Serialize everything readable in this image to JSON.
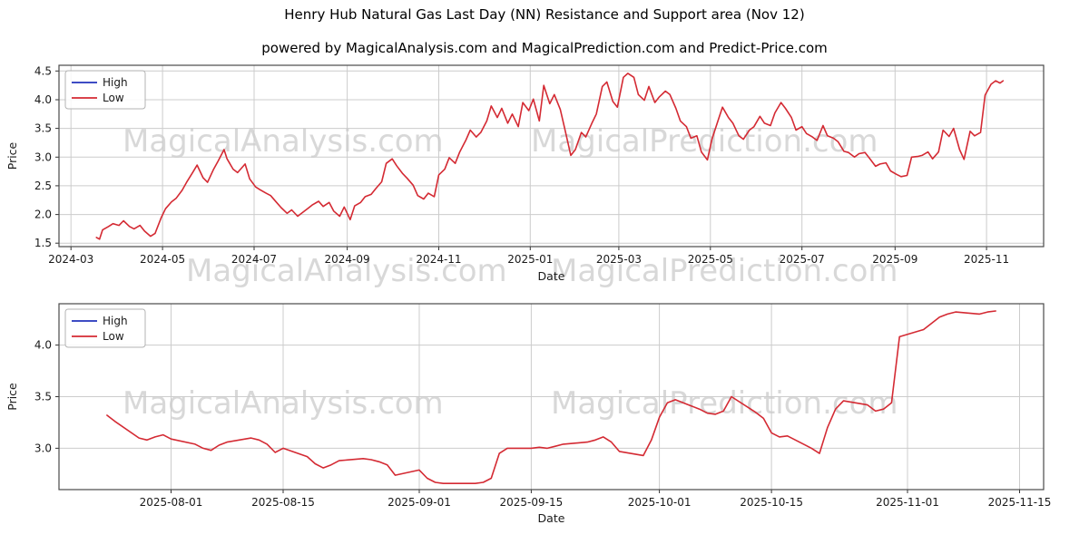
{
  "figure": {
    "title": "Henry Hub Natural Gas Last Day  (NN) Resistance and Support area (Nov 12)",
    "subtitle": "powered by MagicalAnalysis.com and MagicalPrediction.com and Predict-Price.com"
  },
  "watermarks": [
    {
      "text": "MagicalAnalysis.com"
    },
    {
      "text": "MagicalPrediction.com"
    },
    {
      "text": "MagicalAnalysis.com"
    },
    {
      "text": "MagicalPrediction.com"
    },
    {
      "text": "MagicalAnalysis.com"
    },
    {
      "text": "MagicalPrediction.com"
    }
  ],
  "chart_data": [
    {
      "type": "line",
      "title": "",
      "xlabel": "Date",
      "ylabel": "Price",
      "grid": true,
      "x_domain": [
        "2024-02-22",
        "2025-12-09"
      ],
      "x_ticks": [
        {
          "date": "2024-03-01",
          "label": "2024-03"
        },
        {
          "date": "2024-05-01",
          "label": "2024-05"
        },
        {
          "date": "2024-07-01",
          "label": "2024-07"
        },
        {
          "date": "2024-09-01",
          "label": "2024-09"
        },
        {
          "date": "2024-11-01",
          "label": "2024-11"
        },
        {
          "date": "2025-01-01",
          "label": "2025-01"
        },
        {
          "date": "2025-03-01",
          "label": "2025-03"
        },
        {
          "date": "2025-05-01",
          "label": "2025-05"
        },
        {
          "date": "2025-07-01",
          "label": "2025-07"
        },
        {
          "date": "2025-09-01",
          "label": "2025-09"
        },
        {
          "date": "2025-11-01",
          "label": "2025-11"
        }
      ],
      "ylim": [
        1.44,
        4.6
      ],
      "y_ticks": [
        1.5,
        2.0,
        2.5,
        3.0,
        3.5,
        4.0,
        4.5
      ],
      "legend": {
        "position": "upper left",
        "entries": [
          {
            "label": "High",
            "color": "#2233bb"
          },
          {
            "label": "Low",
            "color": "#d42a33"
          }
        ]
      },
      "series": [
        {
          "name": "Low",
          "color": "#d42a33",
          "x": [
            "2024-03-18",
            "2024-03-20",
            "2024-03-22",
            "2024-03-26",
            "2024-03-29",
            "2024-04-02",
            "2024-04-05",
            "2024-04-09",
            "2024-04-12",
            "2024-04-16",
            "2024-04-19",
            "2024-04-23",
            "2024-04-26",
            "2024-04-30",
            "2024-05-03",
            "2024-05-07",
            "2024-05-10",
            "2024-05-14",
            "2024-05-17",
            "2024-05-21",
            "2024-05-24",
            "2024-05-28",
            "2024-05-31",
            "2024-06-04",
            "2024-06-07",
            "2024-06-11",
            "2024-06-13",
            "2024-06-17",
            "2024-06-20",
            "2024-06-25",
            "2024-06-28",
            "2024-07-02",
            "2024-07-05",
            "2024-07-09",
            "2024-07-12",
            "2024-07-16",
            "2024-07-19",
            "2024-07-23",
            "2024-07-26",
            "2024-07-30",
            "2024-08-02",
            "2024-08-06",
            "2024-08-09",
            "2024-08-13",
            "2024-08-16",
            "2024-08-20",
            "2024-08-23",
            "2024-08-27",
            "2024-08-30",
            "2024-09-03",
            "2024-09-06",
            "2024-09-10",
            "2024-09-13",
            "2024-09-17",
            "2024-09-20",
            "2024-09-24",
            "2024-09-27",
            "2024-10-01",
            "2024-10-04",
            "2024-10-08",
            "2024-10-11",
            "2024-10-15",
            "2024-10-18",
            "2024-10-22",
            "2024-10-25",
            "2024-10-29",
            "2024-11-01",
            "2024-11-05",
            "2024-11-08",
            "2024-11-12",
            "2024-11-15",
            "2024-11-19",
            "2024-11-22",
            "2024-11-26",
            "2024-11-29",
            "2024-12-03",
            "2024-12-06",
            "2024-12-10",
            "2024-12-13",
            "2024-12-17",
            "2024-12-20",
            "2024-12-24",
            "2024-12-27",
            "2024-12-31",
            "2025-01-03",
            "2025-01-07",
            "2025-01-10",
            "2025-01-14",
            "2025-01-17",
            "2025-01-21",
            "2025-01-24",
            "2025-01-28",
            "2025-01-31",
            "2025-02-04",
            "2025-02-07",
            "2025-02-11",
            "2025-02-14",
            "2025-02-18",
            "2025-02-21",
            "2025-02-25",
            "2025-02-28",
            "2025-03-04",
            "2025-03-07",
            "2025-03-11",
            "2025-03-14",
            "2025-03-18",
            "2025-03-21",
            "2025-03-25",
            "2025-03-28",
            "2025-04-01",
            "2025-04-04",
            "2025-04-08",
            "2025-04-11",
            "2025-04-15",
            "2025-04-18",
            "2025-04-22",
            "2025-04-25",
            "2025-04-29",
            "2025-05-02",
            "2025-05-06",
            "2025-05-09",
            "2025-05-13",
            "2025-05-16",
            "2025-05-20",
            "2025-05-23",
            "2025-05-27",
            "2025-05-30",
            "2025-06-03",
            "2025-06-06",
            "2025-06-10",
            "2025-06-13",
            "2025-06-17",
            "2025-06-20",
            "2025-06-24",
            "2025-06-27",
            "2025-07-01",
            "2025-07-04",
            "2025-07-08",
            "2025-07-11",
            "2025-07-15",
            "2025-07-18",
            "2025-07-22",
            "2025-07-25",
            "2025-07-29",
            "2025-08-01",
            "2025-08-05",
            "2025-08-08",
            "2025-08-12",
            "2025-08-15",
            "2025-08-19",
            "2025-08-22",
            "2025-08-26",
            "2025-08-29",
            "2025-09-02",
            "2025-09-05",
            "2025-09-09",
            "2025-09-12",
            "2025-09-16",
            "2025-09-19",
            "2025-09-23",
            "2025-09-26",
            "2025-09-30",
            "2025-10-03",
            "2025-10-07",
            "2025-10-10",
            "2025-10-14",
            "2025-10-17",
            "2025-10-21",
            "2025-10-24",
            "2025-10-28",
            "2025-10-31",
            "2025-11-04",
            "2025-11-07",
            "2025-11-10",
            "2025-11-12"
          ],
          "y": [
            1.6,
            1.57,
            1.73,
            1.79,
            1.84,
            1.81,
            1.89,
            1.79,
            1.75,
            1.81,
            1.71,
            1.62,
            1.67,
            1.94,
            2.1,
            2.22,
            2.28,
            2.42,
            2.56,
            2.73,
            2.86,
            2.64,
            2.56,
            2.79,
            2.93,
            3.13,
            2.97,
            2.79,
            2.73,
            2.88,
            2.62,
            2.48,
            2.43,
            2.37,
            2.33,
            2.21,
            2.12,
            2.02,
            2.08,
            1.97,
            2.03,
            2.11,
            2.17,
            2.23,
            2.14,
            2.21,
            2.06,
            1.97,
            2.13,
            1.91,
            2.15,
            2.21,
            2.31,
            2.35,
            2.45,
            2.57,
            2.89,
            2.97,
            2.85,
            2.71,
            2.63,
            2.51,
            2.33,
            2.27,
            2.37,
            2.31,
            2.69,
            2.79,
            2.99,
            2.89,
            3.09,
            3.29,
            3.47,
            3.35,
            3.43,
            3.63,
            3.89,
            3.69,
            3.85,
            3.59,
            3.75,
            3.53,
            3.95,
            3.81,
            4.01,
            3.63,
            4.25,
            3.93,
            4.09,
            3.83,
            3.49,
            3.03,
            3.13,
            3.43,
            3.35,
            3.59,
            3.75,
            4.23,
            4.31,
            3.97,
            3.87,
            4.39,
            4.46,
            4.39,
            4.09,
            3.99,
            4.23,
            3.95,
            4.05,
            4.15,
            4.09,
            3.85,
            3.63,
            3.53,
            3.33,
            3.37,
            3.09,
            2.95,
            3.31,
            3.63,
            3.87,
            3.69,
            3.59,
            3.37,
            3.31,
            3.47,
            3.53,
            3.71,
            3.59,
            3.55,
            3.77,
            3.95,
            3.85,
            3.69,
            3.47,
            3.53,
            3.41,
            3.35,
            3.29,
            3.55,
            3.37,
            3.33,
            3.27,
            3.1,
            3.08,
            3.0,
            3.06,
            3.08,
            2.98,
            2.84,
            2.88,
            2.9,
            2.76,
            2.7,
            2.66,
            2.68,
            3.0,
            3.01,
            3.03,
            3.09,
            2.97,
            3.09,
            3.47,
            3.36,
            3.5,
            3.13,
            2.96,
            3.45,
            3.37,
            3.43,
            4.08,
            4.27,
            4.33,
            4.29,
            4.33
          ]
        }
      ]
    },
    {
      "type": "line",
      "title": "",
      "xlabel": "Date",
      "ylabel": "Price",
      "grid": true,
      "x_domain": [
        "2025-07-18",
        "2025-11-18"
      ],
      "x_ticks": [
        {
          "date": "2025-08-01",
          "label": "2025-08-01"
        },
        {
          "date": "2025-08-15",
          "label": "2025-08-15"
        },
        {
          "date": "2025-09-01",
          "label": "2025-09-01"
        },
        {
          "date": "2025-09-15",
          "label": "2025-09-15"
        },
        {
          "date": "2025-10-01",
          "label": "2025-10-01"
        },
        {
          "date": "2025-10-15",
          "label": "2025-10-15"
        },
        {
          "date": "2025-11-01",
          "label": "2025-11-01"
        },
        {
          "date": "2025-11-15",
          "label": "2025-11-15"
        }
      ],
      "ylim": [
        2.6,
        4.4
      ],
      "y_ticks": [
        3.0,
        3.5,
        4.0
      ],
      "legend": {
        "position": "upper left",
        "entries": [
          {
            "label": "High",
            "color": "#2233bb"
          },
          {
            "label": "Low",
            "color": "#d42a33"
          }
        ]
      },
      "series": [
        {
          "name": "Low",
          "color": "#d42a33",
          "x": [
            "2025-07-24",
            "2025-07-25",
            "2025-07-28",
            "2025-07-29",
            "2025-07-30",
            "2025-07-31",
            "2025-08-01",
            "2025-08-04",
            "2025-08-05",
            "2025-08-06",
            "2025-08-07",
            "2025-08-08",
            "2025-08-11",
            "2025-08-12",
            "2025-08-13",
            "2025-08-14",
            "2025-08-15",
            "2025-08-18",
            "2025-08-19",
            "2025-08-20",
            "2025-08-21",
            "2025-08-22",
            "2025-08-25",
            "2025-08-26",
            "2025-08-27",
            "2025-08-28",
            "2025-08-29",
            "2025-09-01",
            "2025-09-02",
            "2025-09-03",
            "2025-09-04",
            "2025-09-05",
            "2025-09-08",
            "2025-09-09",
            "2025-09-10",
            "2025-09-11",
            "2025-09-12",
            "2025-09-15",
            "2025-09-16",
            "2025-09-17",
            "2025-09-18",
            "2025-09-19",
            "2025-09-22",
            "2025-09-23",
            "2025-09-24",
            "2025-09-25",
            "2025-09-26",
            "2025-09-29",
            "2025-09-30",
            "2025-10-01",
            "2025-10-02",
            "2025-10-03",
            "2025-10-06",
            "2025-10-07",
            "2025-10-08",
            "2025-10-09",
            "2025-10-10",
            "2025-10-13",
            "2025-10-14",
            "2025-10-15",
            "2025-10-16",
            "2025-10-17",
            "2025-10-20",
            "2025-10-21",
            "2025-10-22",
            "2025-10-23",
            "2025-10-24",
            "2025-10-27",
            "2025-10-28",
            "2025-10-29",
            "2025-10-30",
            "2025-10-31",
            "2025-11-03",
            "2025-11-04",
            "2025-11-05",
            "2025-11-06",
            "2025-11-07",
            "2025-11-10",
            "2025-11-11",
            "2025-11-12"
          ],
          "y": [
            3.32,
            3.26,
            3.1,
            3.08,
            3.11,
            3.13,
            3.09,
            3.04,
            3.0,
            2.98,
            3.03,
            3.06,
            3.1,
            3.08,
            3.04,
            2.96,
            3.0,
            2.92,
            2.85,
            2.81,
            2.84,
            2.88,
            2.9,
            2.89,
            2.87,
            2.84,
            2.74,
            2.79,
            2.71,
            2.67,
            2.66,
            2.66,
            2.66,
            2.67,
            2.71,
            2.95,
            3.0,
            3.0,
            3.01,
            3.0,
            3.02,
            3.04,
            3.06,
            3.08,
            3.11,
            3.06,
            2.97,
            2.93,
            3.08,
            3.3,
            3.44,
            3.47,
            3.38,
            3.34,
            3.33,
            3.36,
            3.5,
            3.35,
            3.29,
            3.15,
            3.11,
            3.12,
            3.0,
            2.95,
            3.2,
            3.38,
            3.46,
            3.42,
            3.36,
            3.38,
            3.44,
            4.08,
            4.15,
            4.21,
            4.27,
            4.3,
            4.32,
            4.3,
            4.32,
            4.33
          ]
        }
      ]
    }
  ]
}
